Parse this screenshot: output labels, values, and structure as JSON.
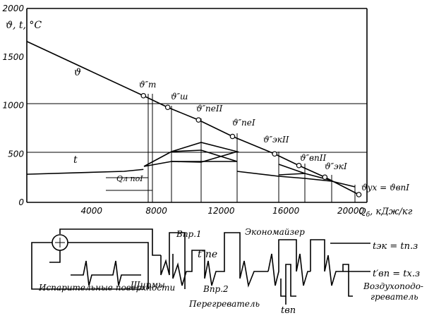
{
  "chart_data": {
    "type": "line",
    "ylabel": "ϑ, t, °C",
    "xlabel": "Q",
    "xlabel_sub": "б",
    "xlabel_unit": ", кДж/кг",
    "x_ticks": [
      "4000",
      "8000",
      "12000",
      "16000",
      "20000"
    ],
    "y_ticks": [
      "0",
      "500",
      "1000",
      "1500",
      "2000"
    ],
    "xlim": [
      0,
      21000
    ],
    "ylim": [
      0,
      2000
    ],
    "series": [
      {
        "name": "ϑ",
        "x": [
          0,
          7200,
          8700,
          10600,
          12700,
          15300,
          16800,
          18400,
          20500
        ],
        "y": [
          1660,
          1100,
          980,
          850,
          680,
          500,
          380,
          260,
          80
        ]
      },
      {
        "name": "t",
        "x": [
          0,
          3000,
          6000,
          7200
        ],
        "y": [
          290,
          305,
          320,
          340
        ]
      }
    ],
    "annotations": {
      "theta_T": "ϑ″т",
      "theta_Sh": "ϑ″ш",
      "theta_pe2": "ϑ″пеII",
      "theta_pe1": "ϑ″пеI",
      "theta_ek2": "ϑ″экII",
      "theta_vp2": "ϑ″впII",
      "theta_ek1": "ϑ″экI",
      "theta_ux": "ϑух = ϑвпI",
      "q_l": "Qл поI"
    }
  },
  "scheme": {
    "labels": {
      "isp": "Испарительные поверхности",
      "shirmy": "Ширмы",
      "vpr1": "Впр.1",
      "vpr2": "Впр.2",
      "t_pe": "t″пе",
      "pereg": "Перегреватель",
      "econ": "Экономайзер",
      "t_ek": "tэк = tп.з",
      "t_vp": "t′вп = tх.з",
      "vozd1": "Воздухоподо-",
      "vozd2": "греватель",
      "tvp": "tвп"
    }
  }
}
